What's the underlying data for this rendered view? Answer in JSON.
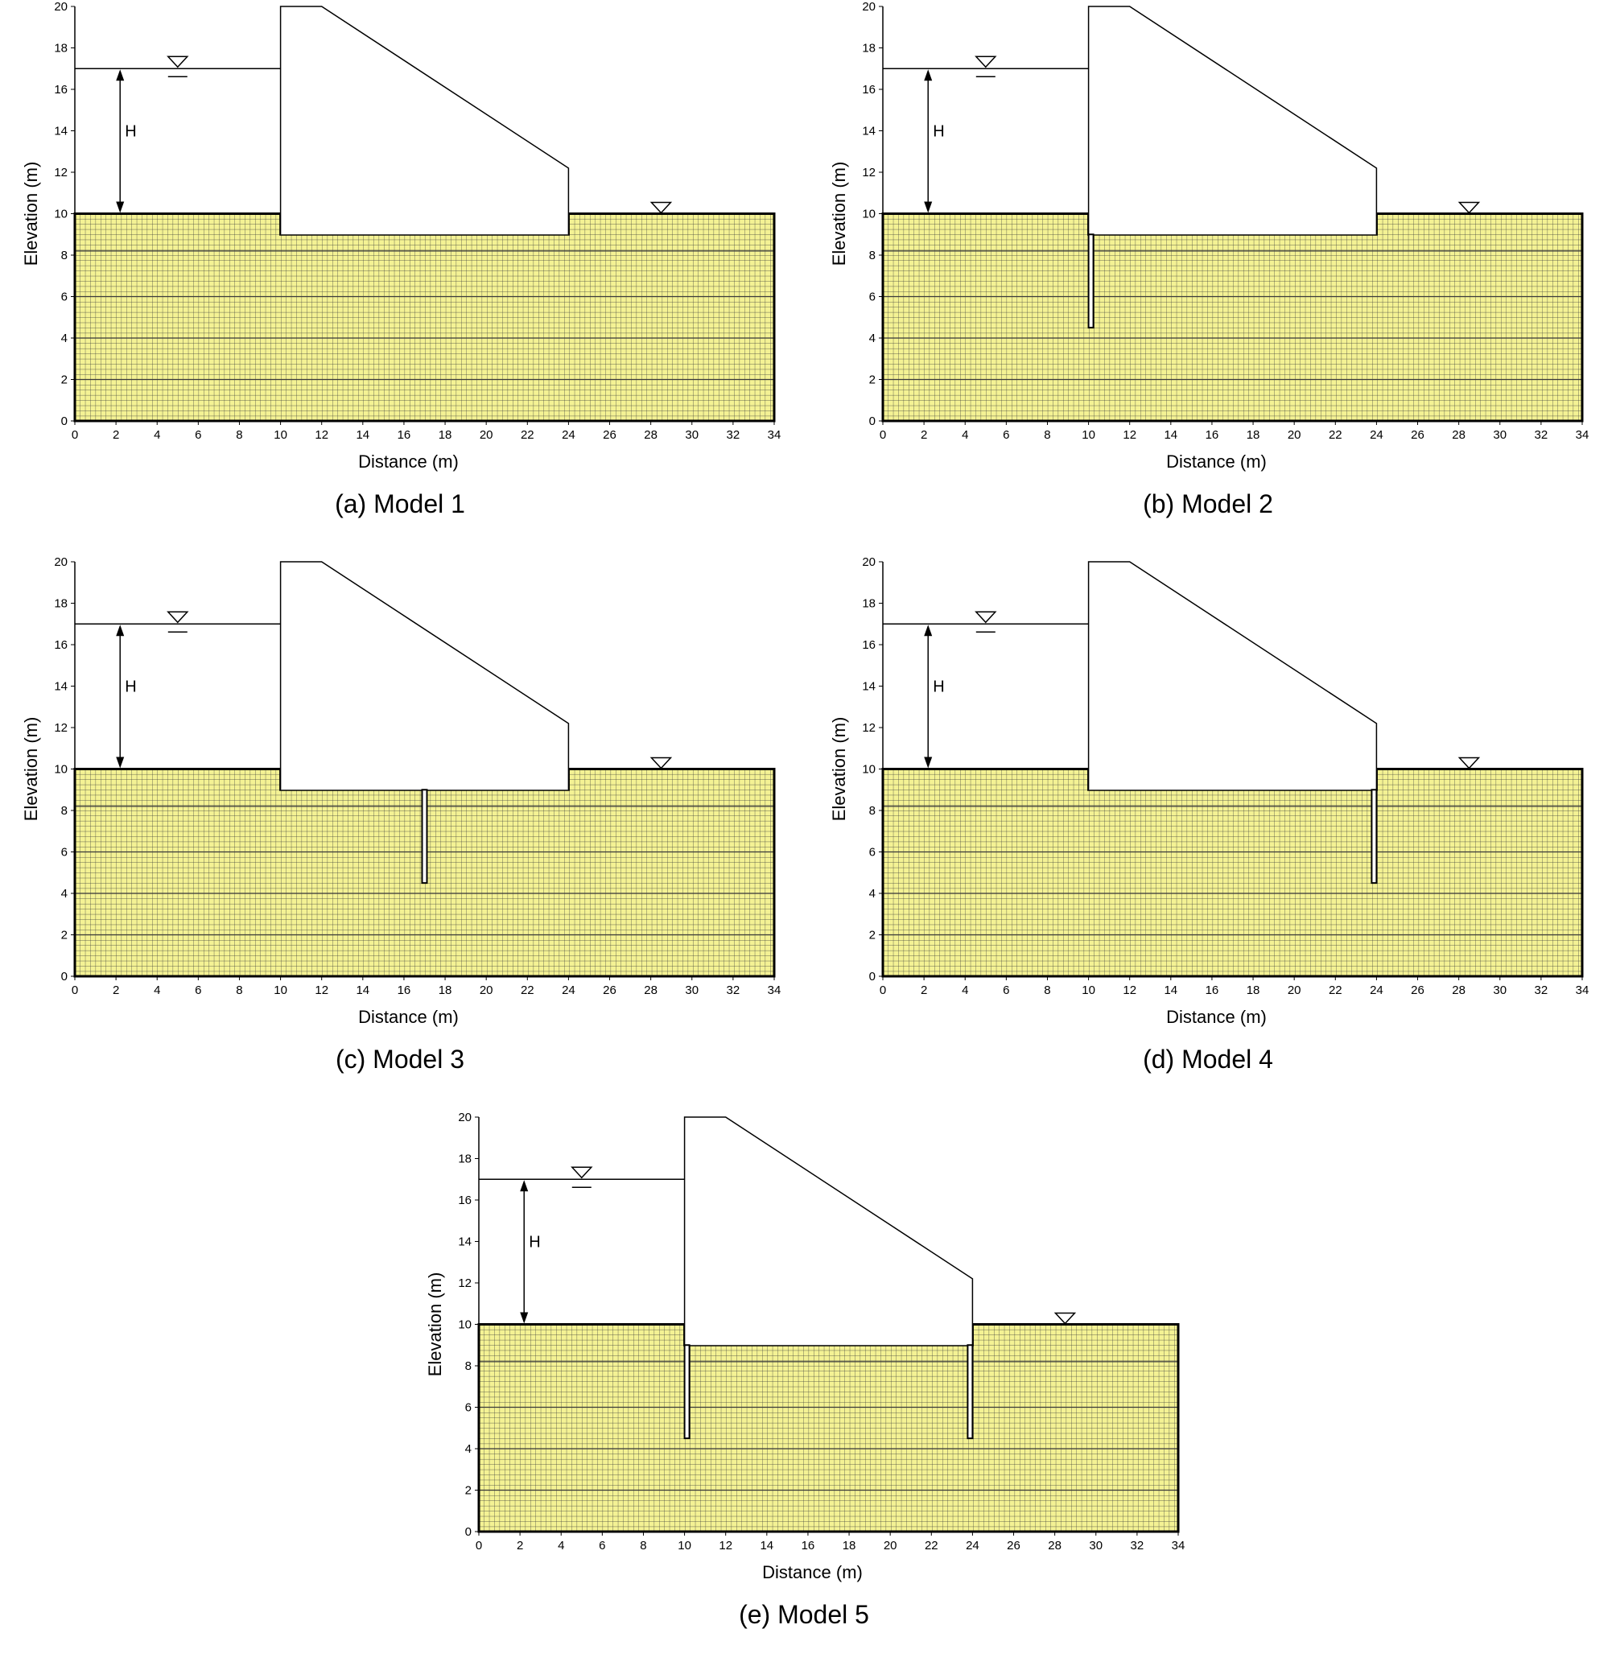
{
  "figure": {
    "x_axis_title": "Distance (m)",
    "y_axis_title": "Elevation (m)",
    "x_ticks": [
      "0",
      "2",
      "4",
      "6",
      "8",
      "10",
      "12",
      "14",
      "16",
      "18",
      "20",
      "22",
      "24",
      "26",
      "28",
      "30",
      "32",
      "34"
    ],
    "y_ticks": [
      "0",
      "2",
      "4",
      "6",
      "8",
      "10",
      "12",
      "14",
      "16",
      "18",
      "20"
    ],
    "head_label": "H",
    "colors": {
      "soil": "#f4f294",
      "mesh": "#3a3a3a",
      "outline": "#000000",
      "background": "#ffffff"
    },
    "panels": [
      {
        "caption": "(a) Model 1",
        "cutoff_walls": []
      },
      {
        "caption": "(b) Model 2",
        "cutoff_walls": [
          {
            "x": 10,
            "bottom": 4.5
          }
        ]
      },
      {
        "caption": "(c) Model 3",
        "cutoff_walls": [
          {
            "x": 17,
            "bottom": 4.5
          }
        ]
      },
      {
        "caption": "(d) Model 4",
        "cutoff_walls": [
          {
            "x": 24,
            "bottom": 4.5
          }
        ]
      },
      {
        "caption": "(e) Model 5",
        "cutoff_walls": [
          {
            "x": 10,
            "bottom": 4.5
          },
          {
            "x": 24,
            "bottom": 4.5
          }
        ]
      }
    ],
    "geometry": {
      "x_range": [
        0,
        34
      ],
      "y_range": [
        0,
        20
      ],
      "ground_upstream": 10,
      "ground_downstream": 10,
      "dam_base": 9,
      "dam_heel_x": 10,
      "dam_toe_x": 24,
      "crest_end_x": 12,
      "crest_elev": 20,
      "toe_top_elev": 12.2,
      "upstream_water_level": 17,
      "downstream_water_level": 10,
      "upstream_symbol_x": 5,
      "downstream_symbol_x": 28.5,
      "head_arrow_x": 2.2,
      "mesh_spacing": 0.25
    }
  }
}
